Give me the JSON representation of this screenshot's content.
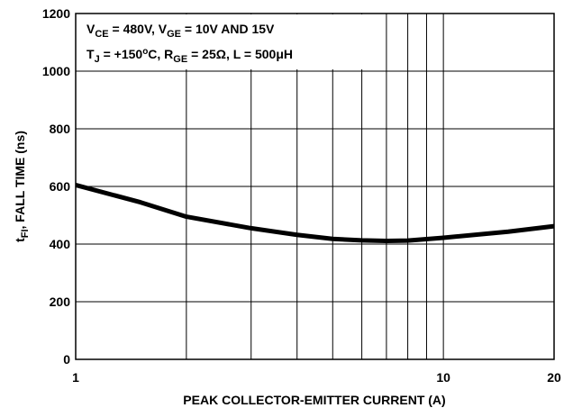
{
  "chart_data": {
    "type": "line",
    "xlabel": "PEAK COLLECTOR-EMITTER CURRENT (A)",
    "ylabel": [
      "t",
      {
        "sub": "FI"
      },
      ", FALL TIME (ns)"
    ],
    "annotation": [
      [
        "V",
        {
          "sub": "CE"
        },
        " = 480V, V",
        {
          "sub": "GE"
        },
        " = 10V AND 15V"
      ],
      [
        "T",
        {
          "sub": "J"
        },
        " = +150",
        {
          "sup": "o"
        },
        "C, R",
        {
          "sub": "GE"
        },
        " = 25Ω, L = 500μH"
      ]
    ],
    "x": [
      1,
      1.5,
      2,
      3,
      4,
      5,
      6,
      7,
      8,
      10,
      15,
      20
    ],
    "series": [
      {
        "name": "tFI",
        "color": "#000000",
        "values": [
          605,
          545,
          495,
          455,
          432,
          418,
          413,
          411,
          412,
          422,
          443,
          462
        ]
      }
    ],
    "xlim": [
      1,
      20
    ],
    "xscale": "log",
    "xticks": [
      1,
      10,
      20
    ],
    "xgrid_minor": [
      2,
      3,
      4,
      5,
      6,
      7,
      8,
      9
    ],
    "ylim": [
      0,
      1200
    ],
    "yticks": [
      0,
      200,
      400,
      600,
      800,
      1000,
      1200
    ],
    "grid": true
  }
}
